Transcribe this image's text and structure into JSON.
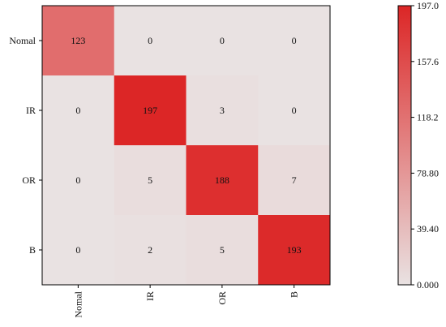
{
  "chart_data": {
    "type": "heatmap",
    "title": "",
    "xlabel": "",
    "ylabel": "",
    "row_labels": [
      "Nomal",
      "IR",
      "OR",
      "B"
    ],
    "col_labels": [
      "Nomal",
      "IR",
      "OR",
      "B"
    ],
    "values": [
      [
        123,
        0,
        0,
        0
      ],
      [
        0,
        197,
        3,
        0
      ],
      [
        0,
        5,
        188,
        7
      ],
      [
        0,
        2,
        5,
        193
      ]
    ],
    "value_labels": [
      [
        "123",
        "0",
        "0",
        "0"
      ],
      [
        "0",
        "197",
        "3",
        "0"
      ],
      [
        "0",
        "5",
        "188",
        "7"
      ],
      [
        "0",
        "2",
        "5",
        "193"
      ]
    ],
    "colorbar": {
      "range": [
        0,
        197
      ],
      "ticks": [
        0,
        39.4,
        78.8,
        118.2,
        157.6,
        197
      ],
      "tick_labels": [
        "0.000",
        "39.40",
        "78.80",
        "118.2",
        "157.6",
        "197.0"
      ],
      "low_color": "#e9e2e2",
      "high_color": "#dc2626"
    },
    "grid": false,
    "legend": "colorbar-right"
  }
}
